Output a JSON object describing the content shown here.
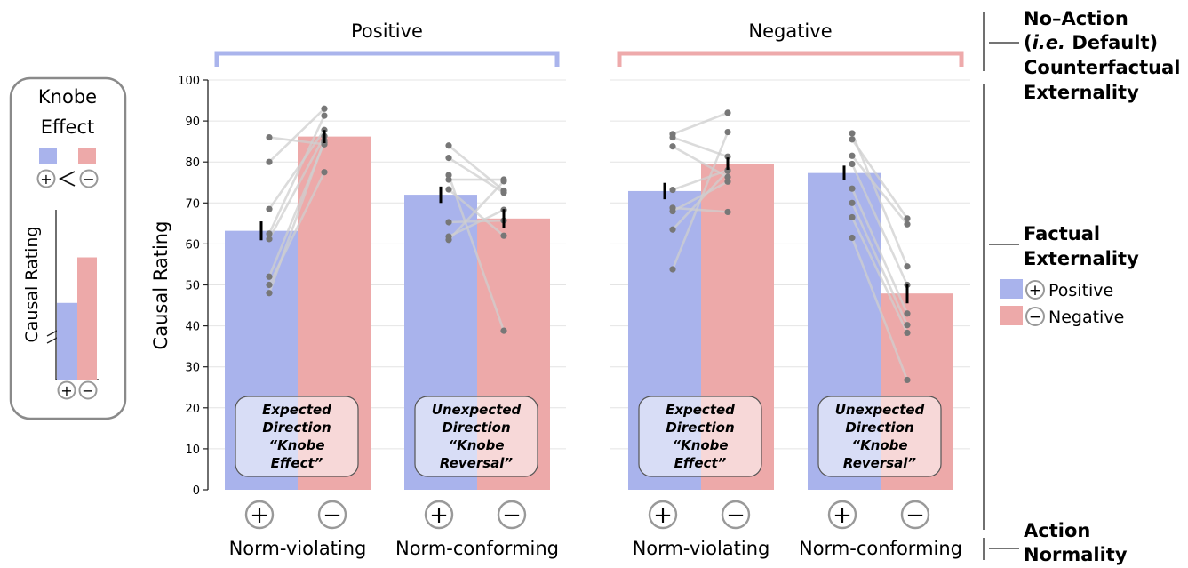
{
  "colors": {
    "positive": "#a9b3ec",
    "negative": "#eda9a9",
    "bracket_positive": "#aab4ec",
    "bracket_negative": "#eeaaab",
    "dot": "#777777",
    "line": "#cfcfcf",
    "errorbar": "#000000"
  },
  "groups": [
    {
      "label": "Positive",
      "start": 0,
      "end": 3
    },
    {
      "label": "Negative",
      "start": 4,
      "end": 7
    }
  ],
  "categories": [
    "Norm-violating",
    "Norm-conforming",
    "Norm-violating",
    "Norm-conforming"
  ],
  "annotations": [
    {
      "lines": [
        "Expected",
        "Direction",
        "“Knobe",
        "Effect”"
      ]
    },
    {
      "lines": [
        "Unexpected",
        "Direction",
        "“Knobe",
        "Reversal”"
      ]
    },
    {
      "lines": [
        "Expected",
        "Direction",
        "“Knobe",
        "Effect”"
      ]
    },
    {
      "lines": [
        "Unexpected",
        "Direction",
        "“Knobe",
        "Reversal”"
      ]
    }
  ],
  "right_labels": {
    "counterfactual": [
      "No–Action",
      "(i.e. Default)",
      "Counterfactual",
      "Externality"
    ],
    "factual": [
      "Factual",
      "Externality"
    ],
    "action": [
      "Action",
      "Normality"
    ]
  },
  "legend": [
    {
      "symbol": "+",
      "label": "Positive",
      "color": "#a9b3ec"
    },
    {
      "symbol": "−",
      "label": "Negative",
      "color": "#eda9a9"
    }
  ],
  "inset": {
    "title_lines": [
      "Knobe",
      "Effect"
    ],
    "ylabel": "Causal Rating",
    "symbols": [
      "+",
      "−"
    ],
    "bar_values": [
      0.37,
      0.59
    ]
  },
  "chart_data": {
    "type": "bar",
    "ylabel": "Causal Rating",
    "ylim": [
      0,
      100
    ],
    "yticks": [
      0,
      10,
      20,
      30,
      40,
      50,
      60,
      70,
      80,
      90,
      100
    ],
    "grid": true,
    "bars": [
      {
        "group": "Positive",
        "action": "Norm-violating",
        "factual": "Positive",
        "value": 63.2,
        "err": 2.3
      },
      {
        "group": "Positive",
        "action": "Norm-violating",
        "factual": "Negative",
        "value": 86.2,
        "err": 1.6
      },
      {
        "group": "Positive",
        "action": "Norm-conforming",
        "factual": "Positive",
        "value": 72.0,
        "err": 2.0
      },
      {
        "group": "Positive",
        "action": "Norm-conforming",
        "factual": "Negative",
        "value": 66.2,
        "err": 2.3
      },
      {
        "group": "Negative",
        "action": "Norm-violating",
        "factual": "Positive",
        "value": 72.9,
        "err": 2.0
      },
      {
        "group": "Negative",
        "action": "Norm-violating",
        "factual": "Negative",
        "value": 79.6,
        "err": 1.5
      },
      {
        "group": "Negative",
        "action": "Norm-conforming",
        "factual": "Positive",
        "value": 77.3,
        "err": 1.8
      },
      {
        "group": "Negative",
        "action": "Norm-conforming",
        "factual": "Negative",
        "value": 47.9,
        "err": 2.4
      }
    ],
    "participant_pairs": [
      [
        [
          86,
          84.3
        ],
        [
          80,
          93
        ],
        [
          68.5,
          87.8
        ],
        [
          61.2,
          86.3
        ],
        [
          52,
          84.8
        ],
        [
          50,
          77.5
        ],
        [
          48,
          85.3
        ],
        [
          62.5,
          91.3
        ]
      ],
      [
        [
          84,
          73
        ],
        [
          81,
          72.5
        ],
        [
          76.8,
          38.8
        ],
        [
          75.7,
          75.7
        ],
        [
          73.3,
          62
        ],
        [
          65.3,
          65.7
        ],
        [
          61.8,
          68.3
        ],
        [
          61,
          75.3
        ]
      ],
      [
        [
          86.8,
          92
        ],
        [
          86,
          81.3
        ],
        [
          83.8,
          76.3
        ],
        [
          73.2,
          78
        ],
        [
          68.8,
          67.8
        ],
        [
          68,
          75.2
        ],
        [
          63.5,
          77.8
        ],
        [
          53.8,
          87.3
        ]
      ],
      [
        [
          87,
          54.5
        ],
        [
          85.5,
          66.2
        ],
        [
          81.5,
          64.8
        ],
        [
          79.5,
          50
        ],
        [
          73.5,
          43
        ],
        [
          70,
          40.2
        ],
        [
          66.5,
          38.3
        ],
        [
          61.5,
          26.8
        ]
      ]
    ]
  }
}
